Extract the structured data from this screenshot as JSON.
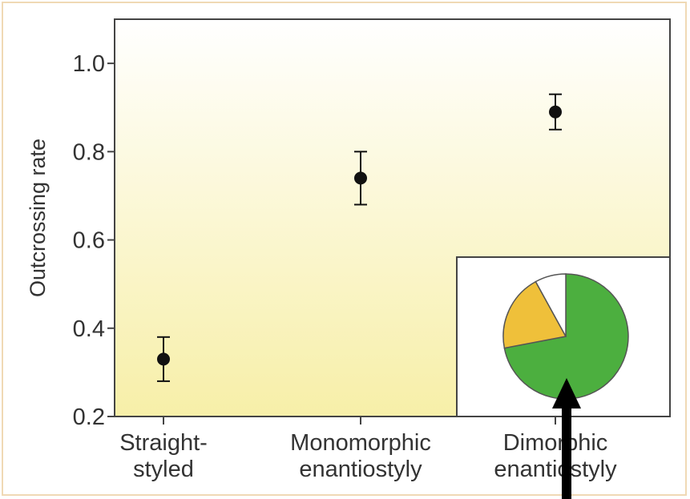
{
  "chart_data": {
    "type": "scatter",
    "ylabel": "Outcrossing rate",
    "ylim": [
      0.2,
      1.1
    ],
    "yticks": [
      "0.2",
      "0.4",
      "0.6",
      "0.8",
      "1.0"
    ],
    "categories": [
      [
        "Straight-",
        "styled"
      ],
      [
        "Monomorphic",
        "enantiostyly"
      ],
      [
        "Dimorphic",
        "enantiostyly"
      ]
    ],
    "points": [
      {
        "category": 0,
        "y": 0.33,
        "lower": 0.28,
        "upper": 0.38
      },
      {
        "category": 1,
        "y": 0.74,
        "lower": 0.68,
        "upper": 0.8
      },
      {
        "category": 2,
        "y": 0.89,
        "lower": 0.85,
        "upper": 0.93
      }
    ],
    "inset": {
      "type": "pie",
      "slices": [
        {
          "value": 0.72,
          "color": "#4caf3f"
        },
        {
          "value": 0.2,
          "color": "#efc03a"
        },
        {
          "value": 0.08,
          "color": "#ffffff"
        }
      ]
    }
  },
  "colors": {
    "plot_bg_top": "#ffffff",
    "plot_bg_bottom": "#f7efa8",
    "frame": "#f0d9b5",
    "arrow": "#000000"
  }
}
